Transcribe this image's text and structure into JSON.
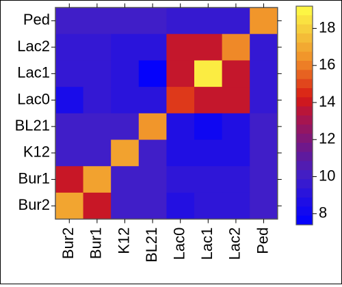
{
  "chart_data": {
    "type": "heatmap",
    "title": "",
    "xlabel": "",
    "ylabel": "",
    "x_categories": [
      "Bur2",
      "Bur1",
      "K12",
      "BL21",
      "Lac0",
      "Lac1",
      "Lac2",
      "Ped"
    ],
    "y_categories_top_to_bottom": [
      "Ped",
      "Lac2",
      "Lac1",
      "Lac0",
      "BL21",
      "K12",
      "Bur1",
      "Bur2"
    ],
    "values": [
      [
        10.0,
        10.0,
        10.0,
        10.0,
        9.6,
        9.6,
        9.6,
        16.5
      ],
      [
        9.5,
        9.5,
        9.1,
        9.1,
        13.8,
        13.8,
        16.2,
        9.5
      ],
      [
        9.5,
        9.5,
        9.1,
        7.6,
        13.8,
        18.7,
        13.8,
        9.5
      ],
      [
        8.4,
        9.5,
        9.1,
        9.1,
        14.8,
        13.8,
        13.8,
        9.5
      ],
      [
        10.0,
        10.0,
        10.0,
        16.5,
        8.7,
        8.0,
        8.7,
        10.0
      ],
      [
        10.0,
        10.0,
        16.8,
        10.0,
        8.7,
        8.7,
        8.7,
        10.0
      ],
      [
        13.9,
        16.8,
        10.0,
        10.0,
        9.3,
        9.3,
        9.3,
        10.0
      ],
      [
        16.9,
        13.9,
        10.0,
        10.0,
        8.8,
        9.3,
        9.3,
        10.0
      ]
    ],
    "value_range": [
      7.4,
      19.2
    ],
    "colorbar": {
      "ticks": [
        8,
        10,
        12,
        14,
        16,
        18
      ],
      "placement": "right"
    },
    "grid": false
  }
}
